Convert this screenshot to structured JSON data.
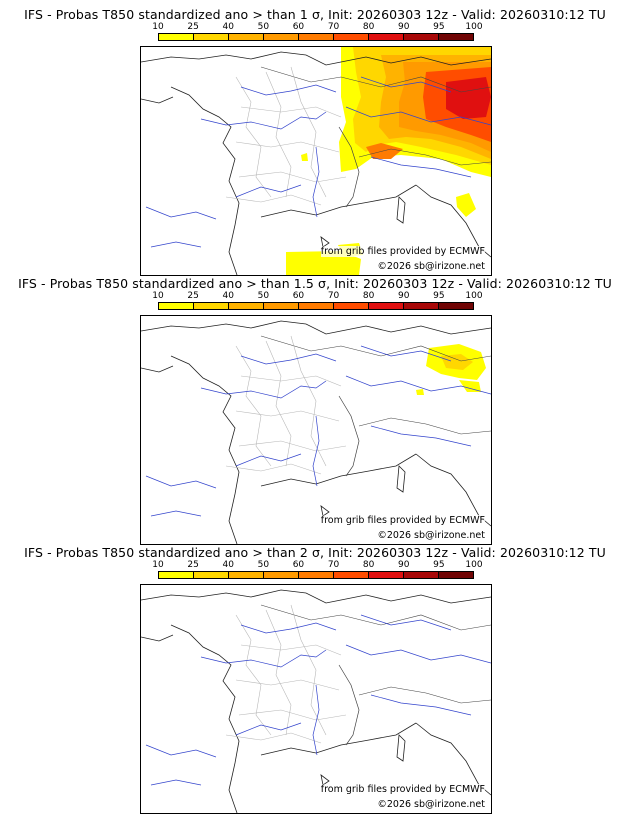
{
  "colorscale": {
    "ticks": [
      "10",
      "25",
      "40",
      "50",
      "60",
      "70",
      "80",
      "90",
      "95",
      "100"
    ],
    "colors": [
      "#ffff00",
      "#ffd700",
      "#ffb300",
      "#ff9a00",
      "#ff7b00",
      "#ff4d00",
      "#e01010",
      "#a80808",
      "#700404"
    ]
  },
  "credits": {
    "source": "from grib files provided by ECMWF",
    "copyright": "©2026 sb@irizone.net"
  },
  "panels": [
    {
      "title": "IFS - Probas T850  standardized ano > than 1 σ, Init: 20260303 12z - Valid: 20260310:12 TU",
      "threshold": "1 σ",
      "coverage": "widespread"
    },
    {
      "title": "IFS - Probas T850  standardized ano > than 1.5 σ, Init: 20260303 12z - Valid: 20260310:12 TU",
      "threshold": "1.5 σ",
      "coverage": "small"
    },
    {
      "title": "IFS - Probas T850  standardized ano > than 2 σ, Init: 20260303 12z - Valid: 20260310:12 TU",
      "threshold": "2 σ",
      "coverage": "none"
    }
  ]
}
